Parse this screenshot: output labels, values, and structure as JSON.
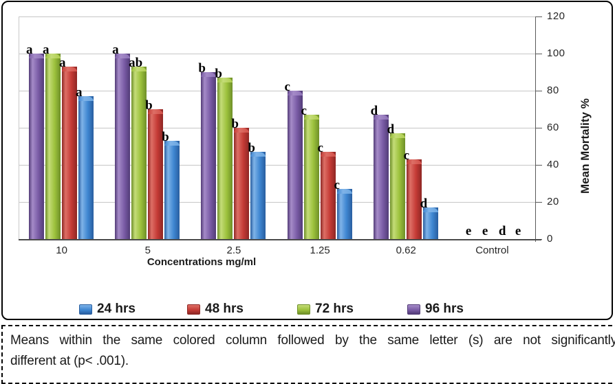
{
  "chart_data": {
    "type": "bar",
    "title": "",
    "categories": [
      "10",
      "5",
      "2.5",
      "1.25",
      "0.62",
      "Control"
    ],
    "xlabel": "Concentrations mg/ml",
    "ylabel": "Mean Mortality %",
    "ylim": [
      0,
      120
    ],
    "yticks": [
      0,
      20,
      40,
      60,
      80,
      100,
      120
    ],
    "grid": "horizontal",
    "legend_position": "bottom",
    "bar_display_order": [
      "96 hrs",
      "72 hrs",
      "48 hrs",
      "24 hrs"
    ],
    "series": [
      {
        "name": "24 hrs",
        "values": [
          77,
          53,
          47,
          27,
          17,
          0
        ],
        "letters": [
          "a",
          "b",
          "b",
          "c",
          "d",
          "e"
        ],
        "colors": {
          "main": "#3E86D1",
          "dark": "#295E9F",
          "light": "#7FB3E8",
          "cap": "#6FA9E2"
        }
      },
      {
        "name": "48 hrs",
        "values": [
          93,
          70,
          60,
          47,
          43,
          0
        ],
        "letters": [
          "a",
          "b",
          "b",
          "c",
          "c",
          "d"
        ],
        "colors": {
          "main": "#C53B36",
          "dark": "#8E2724",
          "light": "#DD6F66",
          "cap": "#D4564F"
        }
      },
      {
        "name": "72 hrs",
        "values": [
          100,
          93,
          87,
          67,
          57,
          0
        ],
        "letters": [
          "a",
          "ab",
          "b",
          "c",
          "d",
          "e"
        ],
        "colors": {
          "main": "#9CC13C",
          "dark": "#6E8F28",
          "light": "#C4DC78",
          "cap": "#B4D158"
        }
      },
      {
        "name": "96 hrs",
        "values": [
          100,
          100,
          90,
          80,
          67,
          0
        ],
        "letters": [
          "a",
          "a",
          "b",
          "c",
          "d",
          "e"
        ],
        "colors": {
          "main": "#7A5CA6",
          "dark": "#523B77",
          "light": "#A58BC8",
          "cap": "#9378BB"
        }
      }
    ]
  },
  "caption": {
    "line1": "Means within the same colored column followed by the same letter (s) are not significantly",
    "line2": "different at (p< .001)."
  },
  "colors": {
    "grid": "#C6C6C6",
    "axis": "#595959",
    "baseline": "#4A4A4A",
    "text": "#262626",
    "chart_border": "#000000",
    "background": "#FFFFFF"
  }
}
